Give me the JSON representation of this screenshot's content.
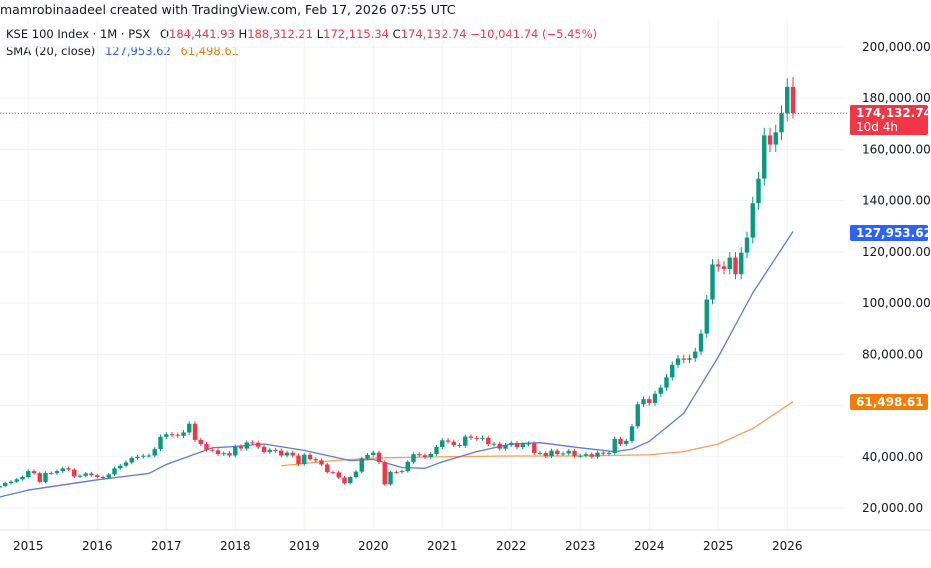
{
  "attribution": "mamrobinaadeel created with TradingView.com, Feb 17, 2026 07:55 UTC",
  "legend": {
    "symbol": "KSE 100 Index · 1M · PSX",
    "open_label": "O",
    "open": "184,441.93",
    "high_label": "H",
    "high": "188,312.21",
    "low_label": "L",
    "low": "172,115.34",
    "close_label": "C",
    "close": "174,132.74",
    "change": "−10,041.74 (−5.45%)",
    "indicator": "SMA (20, close)",
    "sma_fast_value": "127,953.62",
    "sma_slow_value": "61,498.61"
  },
  "badges": {
    "last_price": "174,132.74",
    "countdown": "10d 4h",
    "sma_fast": "127,953.62",
    "sma_slow": "61,498.61"
  },
  "colors": {
    "up": "#089981",
    "down": "#f23645",
    "sma_fast": "#5b7be0",
    "sma_slow": "#f7a05a",
    "badge_fast": "#2962ff",
    "badge_slow": "#f57c00",
    "grid": "#f0f3fa"
  },
  "chart_data": {
    "type": "candlestick",
    "interval": "1M",
    "start_month": "2014-08",
    "closes": [
      28600,
      29700,
      30300,
      31200,
      32100,
      34400,
      33600,
      30200,
      33700,
      33600,
      34400,
      35500,
      35000,
      32300,
      32600,
      33500,
      32800,
      32100,
      31900,
      33100,
      35500,
      36500,
      37800,
      39500,
      40000,
      40400,
      40500,
      43000,
      47800,
      48800,
      48600,
      48200,
      49500,
      52900,
      46600,
      45000,
      42800,
      42500,
      41100,
      41400,
      40500,
      44000,
      43200,
      45600,
      45500,
      43900,
      41900,
      42700,
      42400,
      40500,
      41600,
      40500,
      37100,
      40800,
      39100,
      38600,
      37000,
      34000,
      33900,
      31900,
      29700,
      32100,
      34200,
      39300,
      40700,
      41600,
      37900,
      29200,
      34100,
      34000,
      34400,
      38000,
      41000,
      40600,
      39900,
      41100,
      43800,
      46400,
      45900,
      44600,
      44300,
      47900,
      47400,
      47100,
      47400,
      44900,
      45100,
      43200,
      44600,
      45400,
      43800,
      44900,
      45200,
      41500,
      41500,
      40200,
      42400,
      41100,
      41300,
      42300,
      40400,
      40400,
      41000,
      40000,
      41600,
      41300,
      41500,
      47000,
      45000,
      46200,
      51900,
      60500,
      62500,
      61000,
      64600,
      67000,
      71000,
      75900,
      78400,
      77900,
      78500,
      81100,
      88100,
      101400,
      115100,
      114300,
      113300,
      117800,
      111300,
      119700,
      125600,
      139000,
      148600,
      165500,
      161900,
      166700,
      174100,
      184441.93,
      174132.74
    ],
    "first_open": 28000,
    "last_candle": {
      "open": 184441.93,
      "high": 188312.21,
      "low": 172115.34,
      "close": 174132.74
    },
    "sma_fast": [
      [
        "2014-08",
        24300
      ],
      [
        "2015-01",
        27000
      ],
      [
        "2016-01",
        31000
      ],
      [
        "2016-10",
        33500
      ],
      [
        "2017-01",
        37000
      ],
      [
        "2017-09",
        43500
      ],
      [
        "2018-01",
        44000
      ],
      [
        "2018-06",
        45000
      ],
      [
        "2019-01",
        42500
      ],
      [
        "2019-09",
        38500
      ],
      [
        "2020-01",
        39000
      ],
      [
        "2020-06",
        35800
      ],
      [
        "2020-10",
        35500
      ],
      [
        "2021-01",
        38000
      ],
      [
        "2021-07",
        42000
      ],
      [
        "2022-01",
        45000
      ],
      [
        "2022-06",
        45500
      ],
      [
        "2023-01",
        43500
      ],
      [
        "2023-07",
        42000
      ],
      [
        "2023-10",
        43000
      ],
      [
        "2024-01",
        46000
      ],
      [
        "2024-07",
        57000
      ],
      [
        "2025-01",
        79000
      ],
      [
        "2025-07",
        104000
      ],
      [
        "2026-02",
        127953.62
      ]
    ],
    "sma_slow": [
      [
        "2018-09",
        36500
      ],
      [
        "2019-06",
        38500
      ],
      [
        "2020-01",
        39500
      ],
      [
        "2021-01",
        40000
      ],
      [
        "2022-01",
        40300
      ],
      [
        "2023-01",
        40300
      ],
      [
        "2024-01",
        40800
      ],
      [
        "2024-07",
        42000
      ],
      [
        "2025-01",
        45000
      ],
      [
        "2025-07",
        51000
      ],
      [
        "2026-02",
        61498.61
      ]
    ],
    "y_ticks": [
      "200,000.00",
      "180,000.00",
      "160,000.00",
      "140,000.00",
      "120,000.00",
      "100,000.00",
      "80,000.00",
      "40,000.00",
      "20,000.00"
    ],
    "y_tick_values": [
      200000,
      180000,
      160000,
      140000,
      120000,
      100000,
      80000,
      40000,
      20000
    ],
    "x_ticks": [
      "2015",
      "2016",
      "2017",
      "2018",
      "2019",
      "2020",
      "2021",
      "2022",
      "2023",
      "2024",
      "2025",
      "2026"
    ],
    "grid": true
  }
}
